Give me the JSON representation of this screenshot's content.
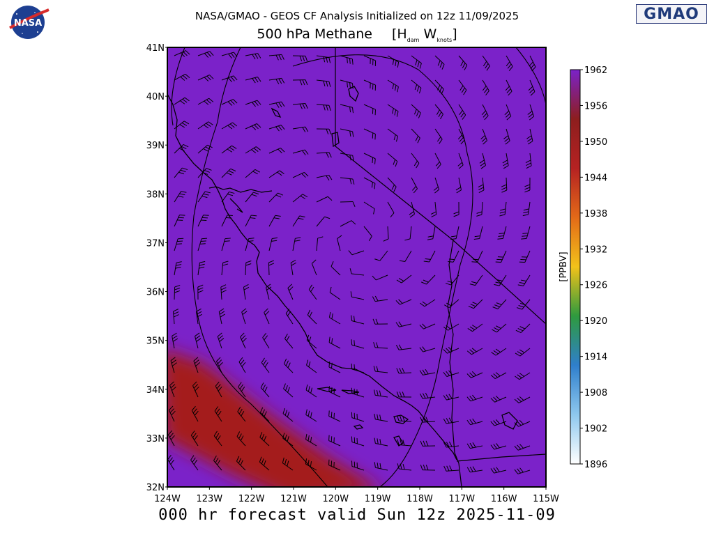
{
  "header": {
    "line1": "NASA/GMAO - GEOS CF Analysis Initialized on 12z 11/09/2025",
    "line2_main": "500 hPa Methane",
    "line2_units_H": "H",
    "line2_units_H_sub": "dam",
    "line2_units_W": "W",
    "line2_units_W_sub": "knots",
    "nasa_logo_text": "NASA",
    "gmao_logo_text": "GMAO"
  },
  "footer": {
    "forecast": "000 hr forecast valid Sun 12z 2025-11-09"
  },
  "colors": {
    "background_field": "#7b22c9",
    "plume": "#a41e1e",
    "coast": "#000000"
  },
  "map": {
    "lat_labels": [
      "41N",
      "40N",
      "39N",
      "38N",
      "37N",
      "36N",
      "35N",
      "34N",
      "33N",
      "32N"
    ],
    "lon_labels": [
      "124W",
      "123W",
      "122W",
      "121W",
      "120W",
      "119W",
      "118W",
      "117W",
      "116W",
      "115W"
    ],
    "lat_range": [
      32,
      41
    ],
    "lon_range": [
      -124,
      -115
    ]
  },
  "colorbar": {
    "unit": "[PPBV]",
    "ticks": [
      "1962",
      "1956",
      "1950",
      "1944",
      "1938",
      "1932",
      "1926",
      "1920",
      "1914",
      "1908",
      "1902",
      "1896"
    ],
    "range": [
      1896,
      1962
    ],
    "stops": [
      "#ffffff",
      "#8ec8ee",
      "#2f7fcc",
      "#2e9a3e",
      "#f2c21a",
      "#e36a18",
      "#b52222",
      "#8d1e1e",
      "#7b22c9"
    ]
  }
}
